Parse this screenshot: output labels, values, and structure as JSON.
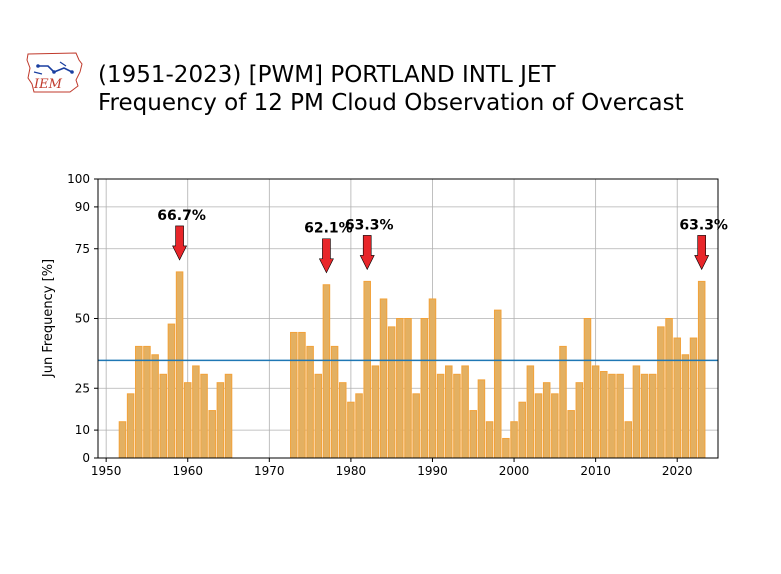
{
  "header": {
    "logo_text": "IEM",
    "title_line1": "(1951-2023) [PWM] PORTLAND INTL JET",
    "title_line2": "Frequency of 12 PM Cloud Observation of Overcast"
  },
  "colors": {
    "bar_fill": "#e3b062",
    "bar_edge": "#f2a23a",
    "average_line": "#1f77b4",
    "arrow": "#e8262a",
    "grid": "#b0b0b0"
  },
  "chart_data": {
    "type": "bar",
    "ylabel": "Jun Frequency [%]",
    "xlim": [
      1949,
      2025
    ],
    "ylim": [
      0,
      100
    ],
    "xticks": [
      1950,
      1960,
      1970,
      1980,
      1990,
      2000,
      2010,
      2020
    ],
    "yticks": [
      0,
      10,
      25,
      50,
      75,
      90,
      100
    ],
    "grid": true,
    "average": 35,
    "x": [
      1952,
      1953,
      1954,
      1955,
      1956,
      1957,
      1958,
      1959,
      1960,
      1961,
      1962,
      1963,
      1964,
      1965,
      1973,
      1974,
      1975,
      1976,
      1977,
      1978,
      1979,
      1980,
      1981,
      1982,
      1983,
      1984,
      1985,
      1986,
      1987,
      1988,
      1989,
      1990,
      1991,
      1992,
      1993,
      1994,
      1995,
      1996,
      1997,
      1998,
      1999,
      2000,
      2001,
      2002,
      2003,
      2004,
      2005,
      2006,
      2007,
      2008,
      2009,
      2010,
      2011,
      2012,
      2013,
      2014,
      2015,
      2016,
      2017,
      2018,
      2019,
      2020,
      2021,
      2022,
      2023
    ],
    "values": [
      13,
      23,
      40,
      40,
      37,
      30,
      48,
      66.7,
      27,
      33,
      30,
      17,
      27,
      30,
      45,
      45,
      40,
      30,
      62.1,
      40,
      27,
      20,
      23,
      63.3,
      33,
      57,
      47,
      50,
      50,
      23,
      50,
      57,
      30,
      33,
      30,
      33,
      17,
      28,
      13,
      53,
      7,
      13,
      20,
      33,
      23,
      27,
      23,
      40,
      17,
      27,
      50,
      33,
      31,
      30,
      30,
      13,
      33,
      30,
      30,
      47,
      50,
      43,
      37,
      43,
      63.3
    ],
    "annotations": [
      {
        "x": 1959,
        "y": 66.7,
        "text": "66.7%"
      },
      {
        "x": 1977,
        "y": 62.1,
        "text": "62.1%"
      },
      {
        "x": 1982,
        "y": 63.3,
        "text": "63.3%"
      },
      {
        "x": 2023,
        "y": 63.3,
        "text": "63.3%"
      }
    ]
  }
}
